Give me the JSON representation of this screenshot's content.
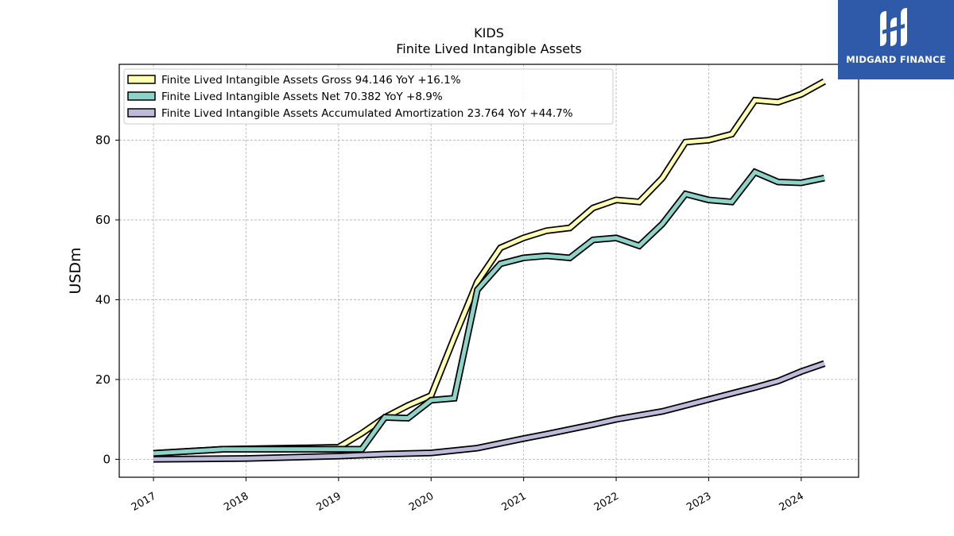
{
  "chart_data": {
    "type": "line",
    "title": "KIDS",
    "subtitle": "Finite Lived Intangible Assets",
    "ylabel": "USDm",
    "xlabel": "",
    "ylim": [
      -4.5,
      99
    ],
    "xlim": [
      2016.63,
      2024.62
    ],
    "yticks": [
      0,
      20,
      40,
      60,
      80
    ],
    "xticks": [
      "2017",
      "2018",
      "2019",
      "2020",
      "2021",
      "2022",
      "2023",
      "2024"
    ],
    "grid": true,
    "legend_position": "top-left",
    "series": [
      {
        "name": "Finite Lived Intangible Assets Gross  94.146 YoY +16.1%",
        "color": "#ffffb3",
        "x": [
          "2017-01-01",
          "2017-10-01",
          "2019-01-01",
          "2019-04-01",
          "2019-07-01",
          "2019-10-01",
          "2020-01-01",
          "2020-04-01",
          "2020-07-01",
          "2020-10-01",
          "2021-01-01",
          "2021-04-01",
          "2021-07-01",
          "2021-10-01",
          "2022-01-01",
          "2022-04-01",
          "2022-07-01",
          "2022-10-01",
          "2023-01-01",
          "2023-04-01",
          "2023-07-01",
          "2023-10-01",
          "2024-01-01",
          "2024-04-01"
        ],
        "values": [
          1.5,
          2.5,
          3.0,
          6.5,
          10.5,
          13.5,
          16.0,
          30.5,
          44.5,
          53.0,
          55.5,
          57.3,
          58.0,
          63.0,
          65.0,
          64.5,
          70.5,
          79.5,
          80.0,
          81.5,
          90.0,
          89.5,
          91.5,
          94.7
        ]
      },
      {
        "name": "Finite Lived Intangible Assets Net  70.382 YoY +8.9%",
        "color": "#8dd3c7",
        "x": [
          "2017-01-01",
          "2017-10-01",
          "2019-01-01",
          "2019-04-01",
          "2019-07-01",
          "2019-10-01",
          "2020-01-01",
          "2020-04-01",
          "2020-07-01",
          "2020-10-01",
          "2021-01-01",
          "2021-04-01",
          "2021-07-01",
          "2021-10-01",
          "2022-01-01",
          "2022-04-01",
          "2022-07-01",
          "2022-10-01",
          "2023-01-01",
          "2023-04-01",
          "2023-07-01",
          "2023-10-01",
          "2024-01-01",
          "2024-04-01"
        ],
        "values": [
          1.5,
          2.5,
          2.5,
          2.5,
          10.5,
          10.3,
          14.8,
          15.3,
          42.5,
          49.0,
          50.5,
          51.0,
          50.5,
          55.0,
          55.5,
          53.5,
          59.0,
          66.5,
          65.0,
          64.5,
          72.0,
          69.5,
          69.3,
          70.5
        ]
      },
      {
        "name": "Finite Lived Intangible Assets Accumulated Amortization  23.764 YoY +44.7%",
        "color": "#bebada",
        "x": [
          "2017-01-01",
          "2018-01-01",
          "2019-01-01",
          "2019-07-01",
          "2020-01-01",
          "2020-07-01",
          "2020-10-01",
          "2021-01-01",
          "2021-04-01",
          "2021-07-01",
          "2021-10-01",
          "2022-01-01",
          "2022-04-01",
          "2022-07-01",
          "2022-10-01",
          "2023-01-01",
          "2023-04-01",
          "2023-07-01",
          "2023-10-01",
          "2024-01-01",
          "2024-04-01"
        ],
        "values": [
          0.0,
          0.2,
          0.8,
          1.3,
          1.6,
          2.8,
          4.0,
          5.2,
          6.3,
          7.5,
          8.7,
          10.0,
          11.0,
          12.0,
          13.5,
          15.0,
          16.5,
          18.0,
          19.6,
          22.0,
          24.0
        ]
      }
    ]
  },
  "logo": {
    "brand_name": "MIDGARD FINANCE",
    "background": "#2f5aa9",
    "icon": "midgard-monogram-icon"
  }
}
